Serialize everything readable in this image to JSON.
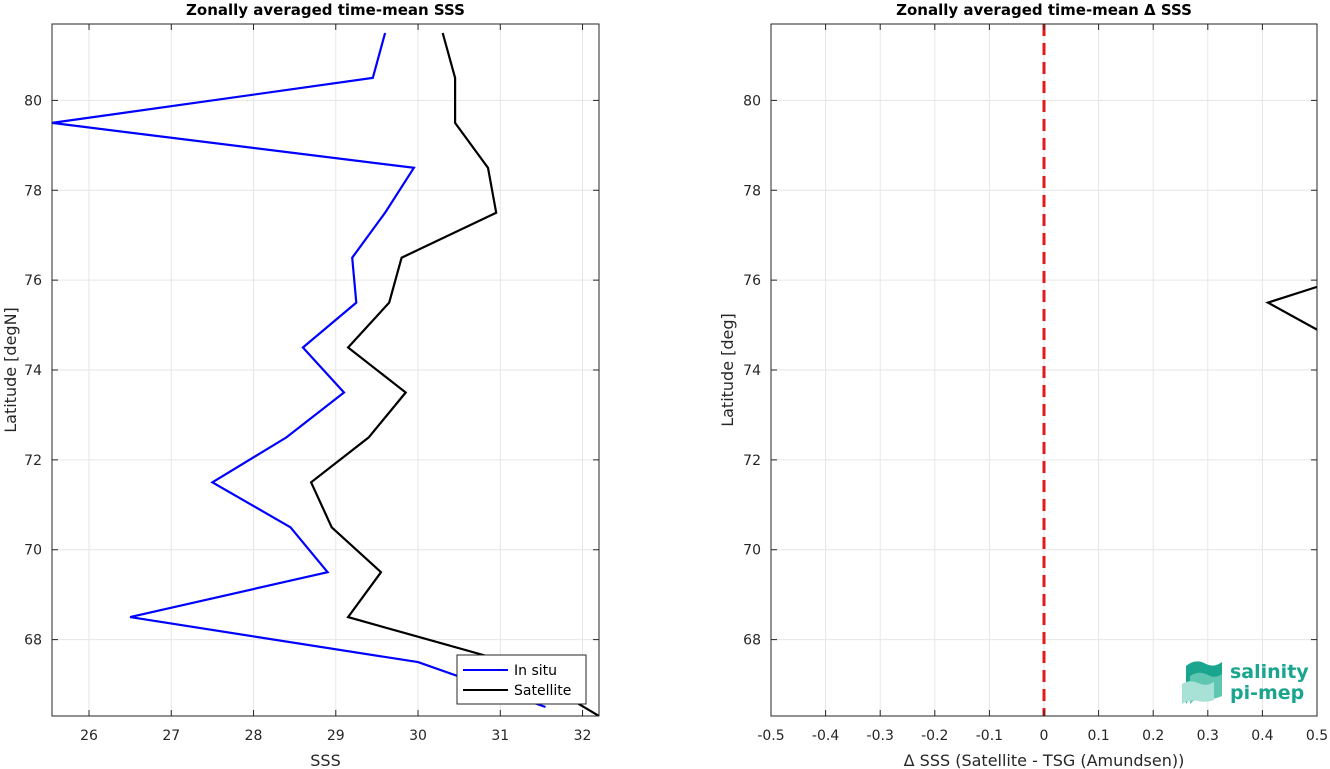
{
  "chart_data": [
    {
      "type": "line",
      "title": "Zonally averaged time-mean SSS",
      "xlabel": "SSS",
      "ylabel": "Latitude [degN]",
      "xlim": [
        25.55,
        32.2
      ],
      "ylim": [
        66.3,
        81.7
      ],
      "xticks": [
        26,
        27,
        28,
        29,
        30,
        31,
        32
      ],
      "yticks": [
        68,
        70,
        72,
        74,
        76,
        78,
        80
      ],
      "grid": true,
      "legend": "bottom-right",
      "series": [
        {
          "name": "In situ",
          "color": "#0000ff",
          "x": [
            29.6,
            29.45,
            25.55,
            29.95,
            29.6,
            29.2,
            29.25,
            28.6,
            29.1,
            28.4,
            27.5,
            28.45,
            28.9,
            26.5,
            30.0,
            31.55
          ],
          "y": [
            81.5,
            80.5,
            79.5,
            78.5,
            77.5,
            76.5,
            75.5,
            74.5,
            73.5,
            72.5,
            71.5,
            70.5,
            69.5,
            68.5,
            67.5,
            66.5
          ]
        },
        {
          "name": "Satellite",
          "color": "#000000",
          "x": [
            30.3,
            30.45,
            30.45,
            30.85,
            30.95,
            29.8,
            29.65,
            29.15,
            29.85,
            29.4,
            28.7,
            28.95,
            29.55,
            29.15,
            31.1,
            32.2
          ],
          "y": [
            81.5,
            80.5,
            79.5,
            78.5,
            77.5,
            76.5,
            75.5,
            74.5,
            73.5,
            72.5,
            71.5,
            70.5,
            69.5,
            68.5,
            67.5,
            66.3
          ]
        }
      ]
    },
    {
      "type": "line",
      "title": "Zonally averaged time-mean Δ SSS",
      "xlabel": "Δ SSS (Satellite - TSG (Amundsen))",
      "ylabel": "Latitude [deg]",
      "xlim": [
        -0.5,
        0.5
      ],
      "ylim": [
        66.3,
        81.7
      ],
      "xticks": [
        -0.5,
        -0.4,
        -0.3,
        -0.2,
        -0.1,
        0,
        0.1,
        0.2,
        0.3,
        0.4,
        0.5
      ],
      "yticks": [
        68,
        70,
        72,
        74,
        76,
        78,
        80
      ],
      "grid": true,
      "reference_line": {
        "x": 0,
        "color": "#e31a1c",
        "style": "dashed"
      },
      "series": [
        {
          "color": "#000000",
          "x": [
            0.5,
            0.41,
            0.5
          ],
          "y": [
            75.85,
            75.5,
            74.9
          ]
        }
      ]
    }
  ],
  "logo": {
    "line1": "salinity",
    "line2": "pi-mep",
    "color": "#1aa58e"
  }
}
